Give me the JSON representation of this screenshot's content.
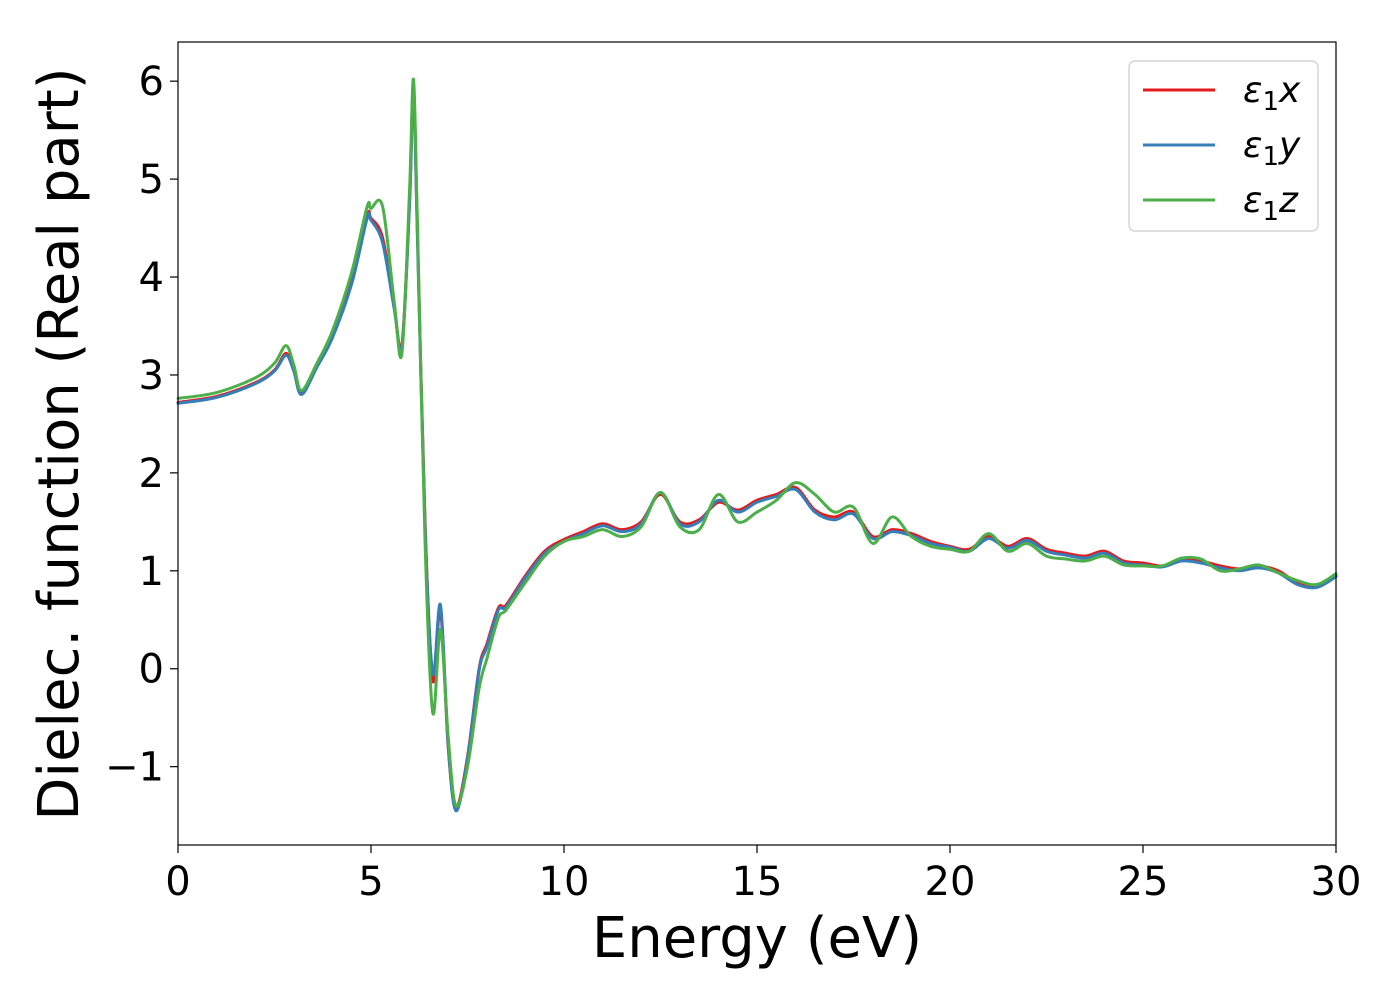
{
  "chart_data": {
    "type": "line",
    "title": "",
    "xlabel": "Energy (eV)",
    "ylabel": "Dielec. function (Real part)",
    "xlim": [
      0,
      30
    ],
    "ylim": [
      -1.8,
      6.4
    ],
    "xticks": [
      0,
      5,
      10,
      15,
      20,
      25,
      30
    ],
    "yticks": [
      -1,
      0,
      1,
      2,
      3,
      4,
      5,
      6
    ],
    "xtick_labels": [
      "0",
      "5",
      "10",
      "15",
      "20",
      "25",
      "30"
    ],
    "ytick_labels": [
      "−1",
      "0",
      "1",
      "2",
      "3",
      "4",
      "5",
      "6"
    ],
    "grid": false,
    "legend_position": "top-right",
    "series": [
      {
        "name": "ε1x",
        "legend_main": "ε",
        "legend_sub": "1",
        "legend_var": "x",
        "color": "#e41a1c",
        "x": [
          0,
          1,
          2,
          2.5,
          2.8,
          3.0,
          3.2,
          3.6,
          4.0,
          4.5,
          4.9,
          5.0,
          5.3,
          5.6,
          5.8,
          6.0,
          6.1,
          6.2,
          6.4,
          6.6,
          6.8,
          7.0,
          7.2,
          7.5,
          7.8,
          8.0,
          8.3,
          8.5,
          9.0,
          9.5,
          10.0,
          10.5,
          11.0,
          11.5,
          12.0,
          12.5,
          13.0,
          13.5,
          14.0,
          14.5,
          15.0,
          15.5,
          16.0,
          16.5,
          17.0,
          17.5,
          18.0,
          18.5,
          19.0,
          19.5,
          20.0,
          20.5,
          21.0,
          21.5,
          22.0,
          22.5,
          23.0,
          23.5,
          24.0,
          24.5,
          25.0,
          25.5,
          26.0,
          26.5,
          27.0,
          27.5,
          28.0,
          28.5,
          29.0,
          29.5,
          30.0
        ],
        "y": [
          2.72,
          2.78,
          2.92,
          3.05,
          3.22,
          3.05,
          2.82,
          3.1,
          3.4,
          3.95,
          4.62,
          4.6,
          4.4,
          3.7,
          3.3,
          4.8,
          5.95,
          4.5,
          1.5,
          -0.12,
          0.6,
          -0.8,
          -1.42,
          -0.9,
          0.0,
          0.25,
          0.62,
          0.65,
          0.95,
          1.2,
          1.32,
          1.4,
          1.48,
          1.42,
          1.5,
          1.78,
          1.5,
          1.52,
          1.7,
          1.62,
          1.72,
          1.78,
          1.85,
          1.62,
          1.55,
          1.6,
          1.35,
          1.42,
          1.38,
          1.3,
          1.25,
          1.22,
          1.35,
          1.25,
          1.33,
          1.22,
          1.18,
          1.15,
          1.2,
          1.1,
          1.08,
          1.05,
          1.12,
          1.1,
          1.05,
          1.02,
          1.05,
          1.0,
          0.88,
          0.85,
          0.95
        ]
      },
      {
        "name": "ε1y",
        "legend_main": "ε",
        "legend_sub": "1",
        "legend_var": "y",
        "color": "#377eb8",
        "x": [
          0,
          1,
          2,
          2.5,
          2.8,
          3.0,
          3.2,
          3.6,
          4.0,
          4.5,
          4.9,
          5.0,
          5.3,
          5.6,
          5.8,
          6.0,
          6.1,
          6.2,
          6.4,
          6.6,
          6.8,
          7.0,
          7.2,
          7.5,
          7.8,
          8.0,
          8.3,
          8.5,
          9.0,
          9.5,
          10.0,
          10.5,
          11.0,
          11.5,
          12.0,
          12.5,
          13.0,
          13.5,
          14.0,
          14.5,
          15.0,
          15.5,
          16.0,
          16.5,
          17.0,
          17.5,
          18.0,
          18.5,
          19.0,
          19.5,
          20.0,
          20.5,
          21.0,
          21.5,
          22.0,
          22.5,
          23.0,
          23.5,
          24.0,
          24.5,
          25.0,
          25.5,
          26.0,
          26.5,
          27.0,
          27.5,
          28.0,
          28.5,
          29.0,
          29.5,
          30.0
        ],
        "y": [
          2.71,
          2.77,
          2.91,
          3.04,
          3.2,
          3.04,
          2.8,
          3.08,
          3.38,
          3.93,
          4.6,
          4.58,
          4.35,
          3.68,
          3.28,
          4.75,
          5.9,
          4.45,
          1.45,
          -0.05,
          0.65,
          -0.78,
          -1.45,
          -0.92,
          -0.02,
          0.22,
          0.6,
          0.63,
          0.93,
          1.18,
          1.3,
          1.38,
          1.46,
          1.4,
          1.48,
          1.8,
          1.48,
          1.5,
          1.72,
          1.6,
          1.7,
          1.76,
          1.83,
          1.6,
          1.52,
          1.58,
          1.33,
          1.4,
          1.36,
          1.28,
          1.24,
          1.2,
          1.33,
          1.23,
          1.31,
          1.2,
          1.16,
          1.13,
          1.18,
          1.08,
          1.06,
          1.04,
          1.1,
          1.08,
          1.03,
          1.0,
          1.03,
          0.98,
          0.86,
          0.83,
          0.94
        ]
      },
      {
        "name": "ε1z",
        "legend_main": "ε",
        "legend_sub": "1",
        "legend_var": "z",
        "color": "#4daf4a",
        "x": [
          0,
          1,
          2,
          2.5,
          2.8,
          3.0,
          3.2,
          3.6,
          4.0,
          4.5,
          4.9,
          5.0,
          5.3,
          5.6,
          5.8,
          6.0,
          6.1,
          6.2,
          6.4,
          6.6,
          6.8,
          7.0,
          7.2,
          7.5,
          7.8,
          8.0,
          8.3,
          8.5,
          9.0,
          9.5,
          10.0,
          10.5,
          11.0,
          11.5,
          12.0,
          12.5,
          13.0,
          13.5,
          14.0,
          14.5,
          15.0,
          15.5,
          16.0,
          16.5,
          17.0,
          17.5,
          18.0,
          18.5,
          19.0,
          19.5,
          20.0,
          20.5,
          21.0,
          21.5,
          22.0,
          22.5,
          23.0,
          23.5,
          24.0,
          24.5,
          25.0,
          25.5,
          26.0,
          26.5,
          27.0,
          27.5,
          28.0,
          28.5,
          29.0,
          29.5,
          30.0
        ],
        "y": [
          2.76,
          2.82,
          2.97,
          3.12,
          3.3,
          3.1,
          2.84,
          3.12,
          3.45,
          4.05,
          4.72,
          4.7,
          4.72,
          3.75,
          3.22,
          4.9,
          6.02,
          4.6,
          1.3,
          -0.45,
          0.4,
          -0.7,
          -1.4,
          -1.0,
          -0.2,
          0.1,
          0.52,
          0.6,
          0.88,
          1.15,
          1.3,
          1.35,
          1.42,
          1.35,
          1.45,
          1.8,
          1.45,
          1.42,
          1.78,
          1.5,
          1.6,
          1.72,
          1.9,
          1.78,
          1.6,
          1.65,
          1.28,
          1.55,
          1.35,
          1.25,
          1.22,
          1.2,
          1.38,
          1.2,
          1.28,
          1.15,
          1.12,
          1.1,
          1.15,
          1.06,
          1.05,
          1.05,
          1.13,
          1.12,
          1.0,
          1.02,
          1.06,
          0.98,
          0.9,
          0.86,
          0.97
        ]
      }
    ]
  }
}
